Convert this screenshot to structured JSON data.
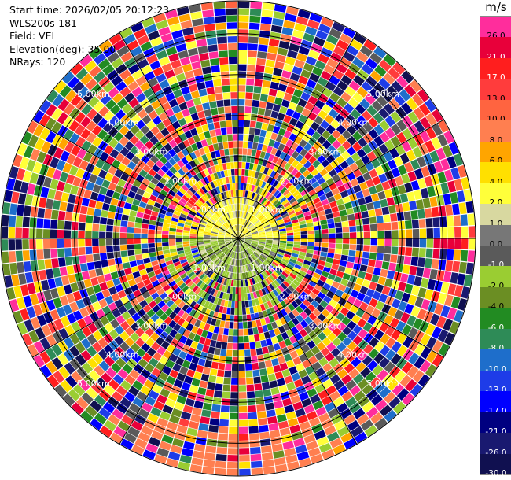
{
  "header": {
    "start_time": "Start time: 2026/02/05 20:12:23",
    "instrument": "WLS200s-181",
    "field": "Field: VEL",
    "elevation": "Elevation(deg): 35.00",
    "nrays": "NRays: 120"
  },
  "colorbar": {
    "unit": "m/s",
    "levels": [
      {
        "label": "26.0",
        "color": "#ff2d9c"
      },
      {
        "label": "21.0",
        "color": "#e8003a"
      },
      {
        "label": "17.0",
        "color": "#ff1e1e"
      },
      {
        "label": "13.0",
        "color": "#ff3c3c"
      },
      {
        "label": "10.0",
        "color": "#ff6440"
      },
      {
        "label": "8.0",
        "color": "#ff7f50"
      },
      {
        "label": "6.0",
        "color": "#ffa500"
      },
      {
        "label": "4.0",
        "color": "#ffe000"
      },
      {
        "label": "2.0",
        "color": "#ffff3a"
      },
      {
        "label": "1.0",
        "color": "#d8d8a0"
      },
      {
        "label": "0.0",
        "color": "#777777"
      },
      {
        "label": "-1.0",
        "color": "#5a5a5a"
      },
      {
        "label": "-2.0",
        "color": "#9acd32"
      },
      {
        "label": "-4.0",
        "color": "#6b8e23"
      },
      {
        "label": "-6.0",
        "color": "#228b22"
      },
      {
        "label": "-8.0",
        "color": "#2e8b57"
      },
      {
        "label": "-10.0",
        "color": "#1e6ecb"
      },
      {
        "label": "-13.0",
        "color": "#1e3ce8"
      },
      {
        "label": "-17.0",
        "color": "#0000ff"
      },
      {
        "label": "-21.0",
        "color": "#000080"
      },
      {
        "label": "-26.0",
        "color": "#191970"
      },
      {
        "label": "-30.0",
        "color": "#101050"
      }
    ]
  },
  "chart_data": {
    "type": "heatmap",
    "projection": "polar PPI",
    "field": "VEL",
    "unit": "m/s",
    "elevation_deg": 35.0,
    "nrays": 120,
    "max_range_km": 5.8,
    "range_rings_km": [
      1,
      2,
      3,
      4,
      5
    ],
    "range_ring_labels": [
      "1.00km",
      "2.00km",
      "3.00km",
      "4.00km",
      "5.00km"
    ],
    "azimuth_spokes_deg": [
      0,
      30,
      60,
      90,
      120,
      150,
      180,
      210,
      240,
      270,
      300,
      330
    ],
    "cmap_range": [
      -30,
      26
    ],
    "grid": true,
    "legend": "right colorbar"
  }
}
